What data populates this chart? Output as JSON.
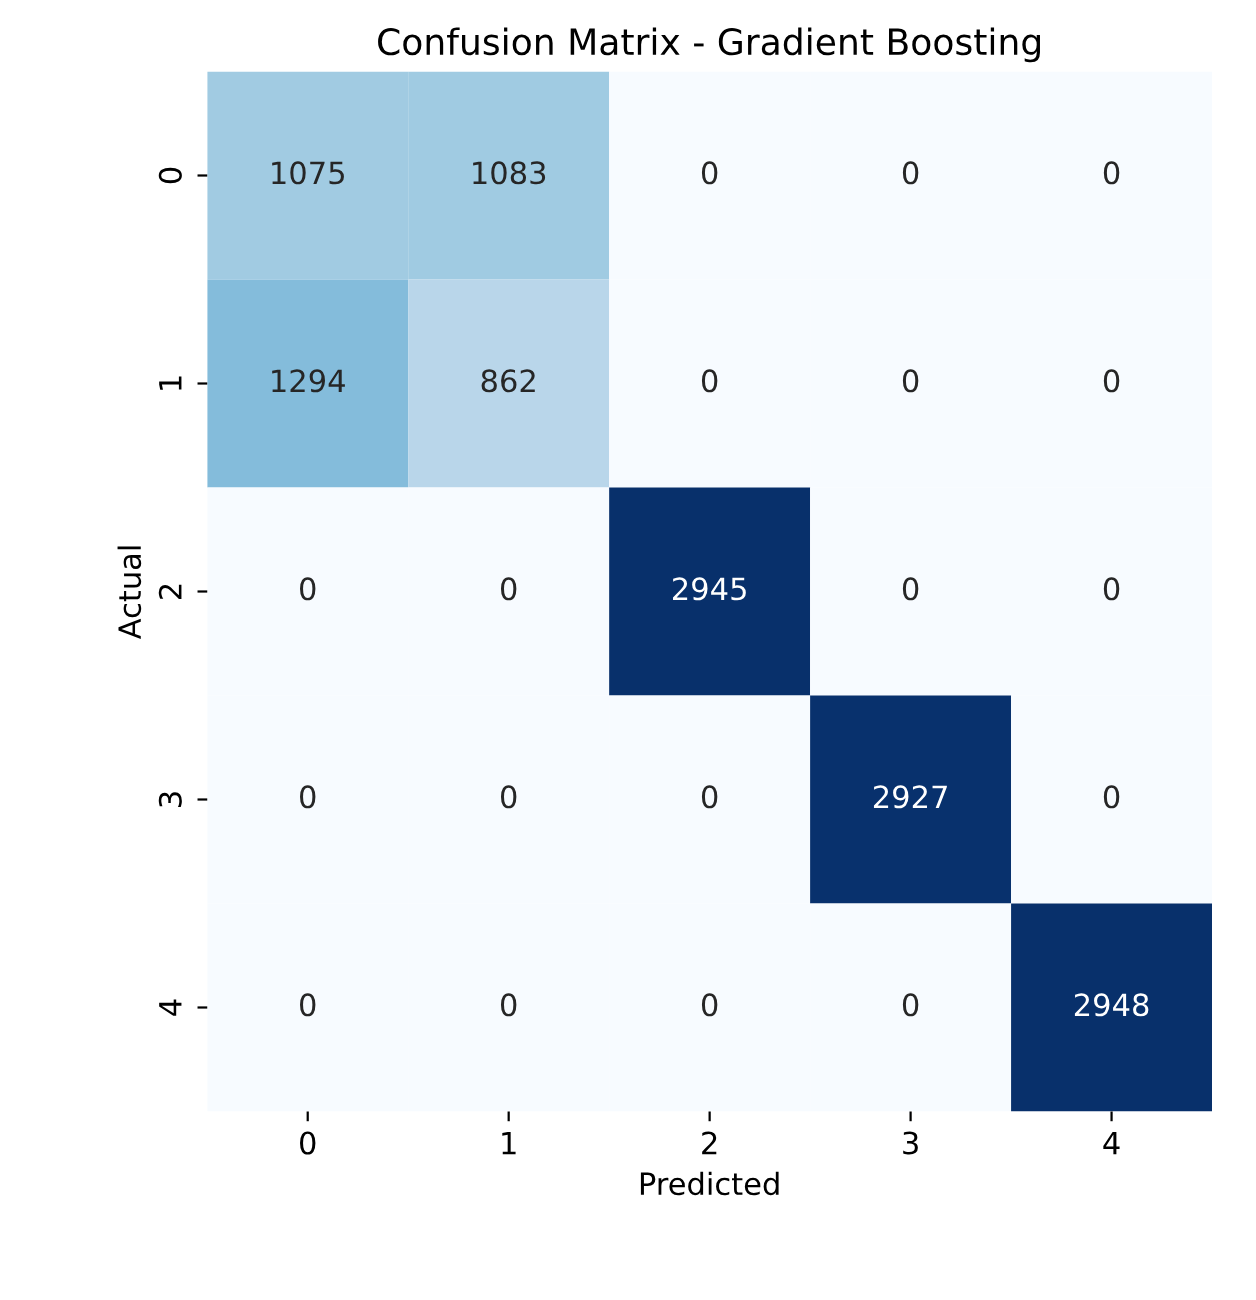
{
  "chart_data": {
    "type": "heatmap",
    "title": "Confusion Matrix - Gradient Boosting",
    "xlabel": "Predicted",
    "ylabel": "Actual",
    "categories": [
      "0",
      "1",
      "2",
      "3",
      "4"
    ],
    "y_categories": [
      "0",
      "1",
      "2",
      "3",
      "4"
    ],
    "cells": [
      [
        1075,
        1083,
        0,
        0,
        0
      ],
      [
        1294,
        862,
        0,
        0,
        0
      ],
      [
        0,
        0,
        2945,
        0,
        0
      ],
      [
        0,
        0,
        0,
        2927,
        0
      ],
      [
        0,
        0,
        0,
        0,
        2948
      ]
    ],
    "data_labels": true
  }
}
